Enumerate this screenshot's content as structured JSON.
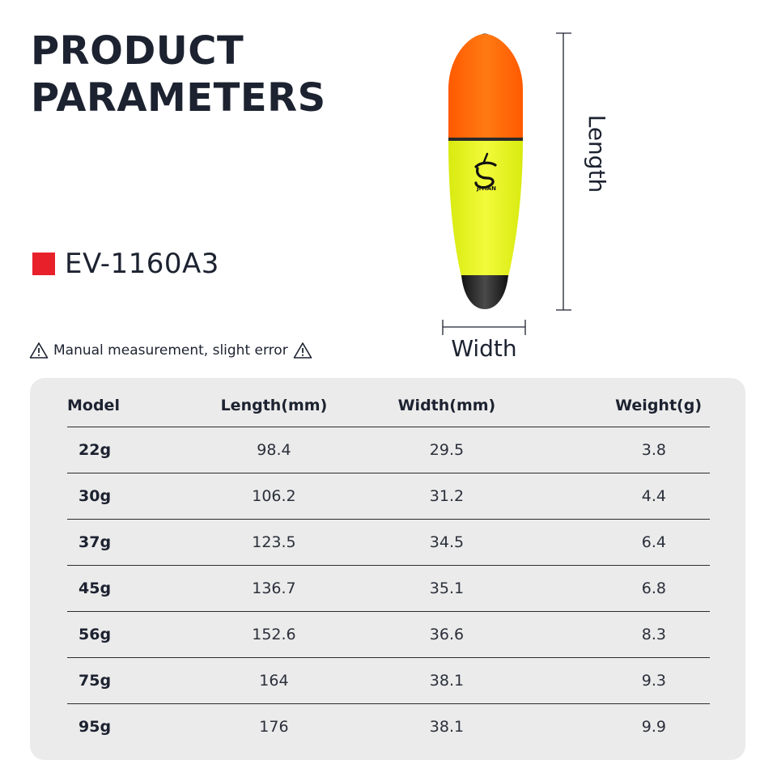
{
  "heading": {
    "line1": "PRODUCT",
    "line2": "PARAMETERS"
  },
  "model": {
    "name": "EV-1160A3",
    "swatch_color": "#e8202a"
  },
  "note": {
    "text": "Manual measurement, slight error",
    "icon": "warning-triangle-icon"
  },
  "product_image": {
    "brand": "JITIAN",
    "length_label": "Length",
    "width_label": "Width",
    "colors": {
      "top": "#ff6a00",
      "body": "#e9f51a",
      "tip": "#1a1a1a"
    }
  },
  "table": {
    "headers": [
      "Model",
      "Length(mm)",
      "Width(mm)",
      "Weight(g)"
    ],
    "rows": [
      [
        "22g",
        "98.4",
        "29.5",
        "3.8"
      ],
      [
        "30g",
        "106.2",
        "31.2",
        "4.4"
      ],
      [
        "37g",
        "123.5",
        "34.5",
        "6.4"
      ],
      [
        "45g",
        "136.7",
        "35.1",
        "6.8"
      ],
      [
        "56g",
        "152.6",
        "36.6",
        "8.3"
      ],
      [
        "75g",
        "164",
        "38.1",
        "9.3"
      ],
      [
        "95g",
        "176",
        "38.1",
        "9.9"
      ]
    ]
  }
}
